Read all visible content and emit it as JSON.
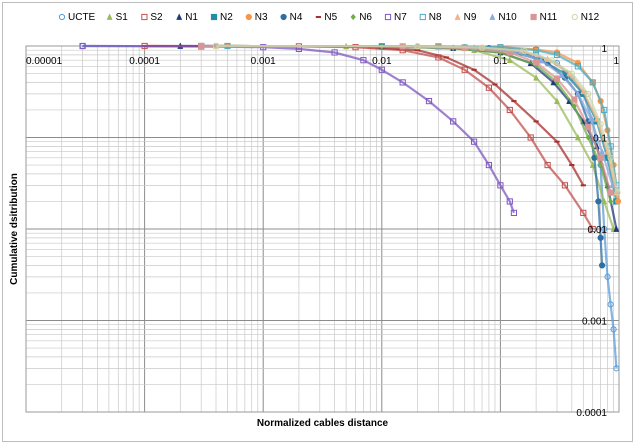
{
  "chart_data": {
    "type": "scatter",
    "title": "",
    "xlabel": "Normalized cables distance",
    "ylabel": "Cumulative dsitribution",
    "x_scale": "log",
    "y_scale": "log",
    "xlim": [
      1e-05,
      1
    ],
    "ylim": [
      0.0001,
      1
    ],
    "x_ticks": [
      {
        "value": 1e-05,
        "label": "0.00001"
      },
      {
        "value": 0.0001,
        "label": "0.0001"
      },
      {
        "value": 0.001,
        "label": "0.001"
      },
      {
        "value": 0.01,
        "label": "0.01"
      },
      {
        "value": 0.1,
        "label": "0.1"
      },
      {
        "value": 1,
        "label": "1"
      }
    ],
    "y_ticks": [
      {
        "value": 1,
        "label": "1"
      },
      {
        "value": 0.1,
        "label": "0.1"
      },
      {
        "value": 0.01,
        "label": "0.01"
      },
      {
        "value": 0.001,
        "label": "0.001"
      },
      {
        "value": 0.0001,
        "label": "0.0001"
      }
    ],
    "grid": true,
    "legend_position": "top",
    "series": [
      {
        "name": "UCTE",
        "color": "#5b9bd5",
        "marker": "circle-open",
        "points": [
          [
            3e-05,
            1.0
          ],
          [
            0.01,
            0.99
          ],
          [
            0.05,
            0.97
          ],
          [
            0.1,
            0.9
          ],
          [
            0.2,
            0.8
          ],
          [
            0.3,
            0.65
          ],
          [
            0.4,
            0.45
          ],
          [
            0.5,
            0.3
          ],
          [
            0.6,
            0.15
          ],
          [
            0.7,
            0.05
          ],
          [
            0.75,
            0.01
          ],
          [
            0.8,
            0.003
          ],
          [
            0.85,
            0.0015
          ],
          [
            0.9,
            0.0008
          ],
          [
            0.95,
            0.0003
          ]
        ]
      },
      {
        "name": "S1",
        "color": "#9bbb59",
        "marker": "triangle",
        "points": [
          [
            0.0003,
            1.0
          ],
          [
            0.005,
            0.99
          ],
          [
            0.02,
            0.97
          ],
          [
            0.06,
            0.9
          ],
          [
            0.12,
            0.7
          ],
          [
            0.2,
            0.45
          ],
          [
            0.3,
            0.25
          ],
          [
            0.45,
            0.1
          ],
          [
            0.6,
            0.05
          ],
          [
            0.75,
            0.02
          ],
          [
            0.9,
            0.01
          ]
        ]
      },
      {
        "name": "S2",
        "color": "#c0504d",
        "marker": "square-open",
        "points": [
          [
            0.0001,
            1.0
          ],
          [
            0.002,
            0.99
          ],
          [
            0.006,
            0.97
          ],
          [
            0.015,
            0.9
          ],
          [
            0.03,
            0.75
          ],
          [
            0.05,
            0.55
          ],
          [
            0.08,
            0.35
          ],
          [
            0.12,
            0.2
          ],
          [
            0.18,
            0.1
          ],
          [
            0.25,
            0.05
          ],
          [
            0.35,
            0.03
          ],
          [
            0.5,
            0.015
          ],
          [
            0.6,
            0.01
          ]
        ]
      },
      {
        "name": "N1",
        "color": "#1f3a7a",
        "marker": "triangle",
        "points": [
          [
            0.0002,
            1.0
          ],
          [
            0.01,
            0.99
          ],
          [
            0.04,
            0.95
          ],
          [
            0.1,
            0.85
          ],
          [
            0.18,
            0.65
          ],
          [
            0.28,
            0.4
          ],
          [
            0.38,
            0.25
          ],
          [
            0.5,
            0.15
          ],
          [
            0.65,
            0.08
          ],
          [
            0.8,
            0.03
          ],
          [
            0.95,
            0.01
          ]
        ]
      },
      {
        "name": "N2",
        "color": "#1f8fa6",
        "marker": "square",
        "points": [
          [
            0.0003,
            1.0
          ],
          [
            0.01,
            0.99
          ],
          [
            0.05,
            0.96
          ],
          [
            0.12,
            0.88
          ],
          [
            0.22,
            0.7
          ],
          [
            0.35,
            0.5
          ],
          [
            0.5,
            0.3
          ],
          [
            0.65,
            0.15
          ],
          [
            0.8,
            0.06
          ],
          [
            0.95,
            0.02
          ]
        ]
      },
      {
        "name": "N3",
        "color": "#f79646",
        "marker": "circle",
        "points": [
          [
            0.0005,
            1.0
          ],
          [
            0.03,
            0.99
          ],
          [
            0.1,
            0.97
          ],
          [
            0.2,
            0.92
          ],
          [
            0.3,
            0.85
          ],
          [
            0.45,
            0.65
          ],
          [
            0.6,
            0.4
          ],
          [
            0.7,
            0.25
          ],
          [
            0.8,
            0.12
          ],
          [
            0.9,
            0.05
          ],
          [
            0.98,
            0.02
          ]
        ]
      },
      {
        "name": "N4",
        "color": "#2f6ea0",
        "marker": "circle",
        "points": [
          [
            0.0004,
            1.0
          ],
          [
            0.02,
            0.99
          ],
          [
            0.08,
            0.95
          ],
          [
            0.15,
            0.85
          ],
          [
            0.25,
            0.65
          ],
          [
            0.35,
            0.45
          ],
          [
            0.45,
            0.3
          ],
          [
            0.55,
            0.15
          ],
          [
            0.62,
            0.06
          ],
          [
            0.67,
            0.02
          ],
          [
            0.7,
            0.008
          ],
          [
            0.72,
            0.004
          ]
        ]
      },
      {
        "name": "N5",
        "color": "#a5302c",
        "marker": "dash",
        "points": [
          [
            0.0001,
            1.0
          ],
          [
            0.002,
            0.99
          ],
          [
            0.008,
            0.97
          ],
          [
            0.02,
            0.9
          ],
          [
            0.035,
            0.75
          ],
          [
            0.06,
            0.55
          ],
          [
            0.09,
            0.38
          ],
          [
            0.13,
            0.25
          ],
          [
            0.2,
            0.15
          ],
          [
            0.3,
            0.09
          ],
          [
            0.4,
            0.05
          ],
          [
            0.5,
            0.03
          ]
        ]
      },
      {
        "name": "N6",
        "color": "#70ad47",
        "marker": "diamond",
        "points": [
          [
            0.0003,
            1.0
          ],
          [
            0.01,
            0.99
          ],
          [
            0.04,
            0.95
          ],
          [
            0.1,
            0.85
          ],
          [
            0.2,
            0.62
          ],
          [
            0.3,
            0.4
          ],
          [
            0.42,
            0.22
          ],
          [
            0.55,
            0.1
          ],
          [
            0.7,
            0.05
          ],
          [
            0.85,
            0.02
          ]
        ]
      },
      {
        "name": "N7",
        "color": "#7e57c2",
        "marker": "square-open",
        "points": [
          [
            3e-05,
            1.0
          ],
          [
            0.0003,
            0.99
          ],
          [
            0.001,
            0.97
          ],
          [
            0.002,
            0.93
          ],
          [
            0.004,
            0.85
          ],
          [
            0.007,
            0.7
          ],
          [
            0.01,
            0.55
          ],
          [
            0.015,
            0.4
          ],
          [
            0.025,
            0.25
          ],
          [
            0.04,
            0.15
          ],
          [
            0.06,
            0.09
          ],
          [
            0.08,
            0.05
          ],
          [
            0.1,
            0.03
          ],
          [
            0.12,
            0.02
          ],
          [
            0.13,
            0.015
          ]
        ]
      },
      {
        "name": "N8",
        "color": "#4bacc6",
        "marker": "square-open",
        "points": [
          [
            0.0005,
            1.0
          ],
          [
            0.03,
            0.99
          ],
          [
            0.1,
            0.97
          ],
          [
            0.2,
            0.9
          ],
          [
            0.3,
            0.8
          ],
          [
            0.45,
            0.6
          ],
          [
            0.6,
            0.4
          ],
          [
            0.75,
            0.2
          ],
          [
            0.85,
            0.08
          ],
          [
            0.95,
            0.03
          ]
        ]
      },
      {
        "name": "N9",
        "color": "#f4b183",
        "marker": "triangle",
        "points": [
          [
            0.0004,
            1.0
          ],
          [
            0.02,
            0.99
          ],
          [
            0.07,
            0.96
          ],
          [
            0.15,
            0.88
          ],
          [
            0.25,
            0.72
          ],
          [
            0.38,
            0.5
          ],
          [
            0.5,
            0.32
          ],
          [
            0.65,
            0.16
          ],
          [
            0.8,
            0.07
          ],
          [
            0.95,
            0.025
          ]
        ]
      },
      {
        "name": "N10",
        "color": "#8faadc",
        "marker": "triangle",
        "points": [
          [
            0.0003,
            1.0
          ],
          [
            0.015,
            0.99
          ],
          [
            0.06,
            0.96
          ],
          [
            0.13,
            0.87
          ],
          [
            0.22,
            0.7
          ],
          [
            0.33,
            0.48
          ],
          [
            0.45,
            0.3
          ],
          [
            0.58,
            0.16
          ],
          [
            0.72,
            0.07
          ],
          [
            0.88,
            0.03
          ]
        ]
      },
      {
        "name": "N11",
        "color": "#d99694",
        "marker": "square",
        "points": [
          [
            0.0003,
            1.0
          ],
          [
            0.015,
            0.99
          ],
          [
            0.05,
            0.95
          ],
          [
            0.12,
            0.85
          ],
          [
            0.2,
            0.66
          ],
          [
            0.3,
            0.44
          ],
          [
            0.42,
            0.26
          ],
          [
            0.55,
            0.13
          ],
          [
            0.7,
            0.06
          ],
          [
            0.85,
            0.025
          ]
        ]
      },
      {
        "name": "N12",
        "color": "#c9d7a8",
        "marker": "circle-open",
        "points": [
          [
            0.0004,
            1.0
          ],
          [
            0.02,
            0.99
          ],
          [
            0.07,
            0.96
          ],
          [
            0.16,
            0.88
          ],
          [
            0.27,
            0.7
          ],
          [
            0.4,
            0.5
          ],
          [
            0.55,
            0.3
          ],
          [
            0.7,
            0.14
          ],
          [
            0.85,
            0.06
          ],
          [
            0.97,
            0.025
          ]
        ]
      }
    ]
  }
}
